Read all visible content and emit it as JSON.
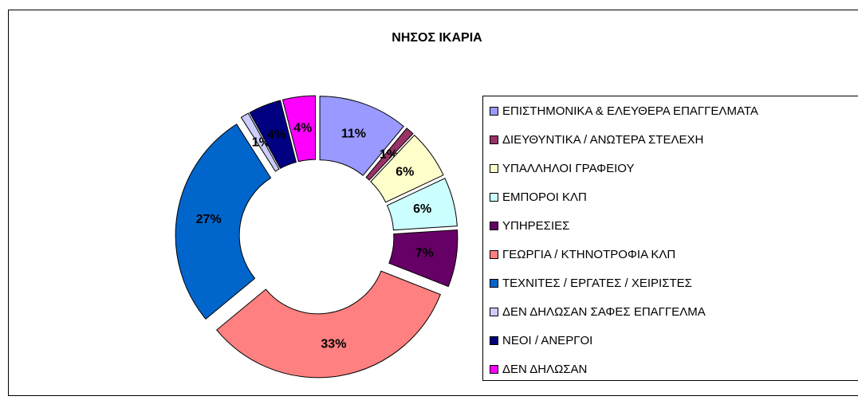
{
  "chart_data": {
    "type": "pie",
    "title": "ΝΗΣΟΣ ΙΚΑΡΙΑ",
    "categories": [
      "ΕΠΙΣΤΗΜΟΝΙΚΑ & ΕΛΕΥΘΕΡΑ ΕΠΑΓΓΕΛΜΑΤΑ",
      "ΔΙΕΥΘΥΝΤΙΚΑ / ΑΝΩΤΕΡΑ ΣΤΕΛΕΧΗ",
      "ΥΠΑΛΛΗΛΟΙ ΓΡΑΦΕΙΟΥ",
      "ΕΜΠΟΡΟΙ ΚΛΠ",
      "ΥΠΗΡΕΣΙΕΣ",
      "ΓΕΩΡΓΙΑ / ΚΤΗΝΟΤΡΟΦΙΑ ΚΛΠ",
      "ΤΕΧΝΙΤΕΣ / ΕΡΓΑΤΕΣ / ΧΕΙΡΙΣΤΕΣ",
      "ΔΕΝ ΔΗΛΩΣΑΝ ΣΑΦΕΣ ΕΠΑΓΓΕΛΜΑ",
      "ΝΕΟΙ / ΑΝΕΡΓΟΙ",
      "ΔΕΝ ΔΗΛΩΣΑΝ"
    ],
    "values": [
      11,
      1,
      6,
      6,
      7,
      33,
      27,
      1,
      4,
      4
    ],
    "value_labels": [
      "11%",
      "1%",
      "6%",
      "6%",
      "7%",
      "33%",
      "27%",
      "1%",
      "4%",
      "4%"
    ],
    "colors": [
      "#9999ff",
      "#993366",
      "#ffffcc",
      "#ccffff",
      "#660066",
      "#ff8080",
      "#0066cc",
      "#ccccff",
      "#000080",
      "#ff00ff"
    ],
    "donut": true,
    "exploded": true,
    "legend": "right"
  }
}
